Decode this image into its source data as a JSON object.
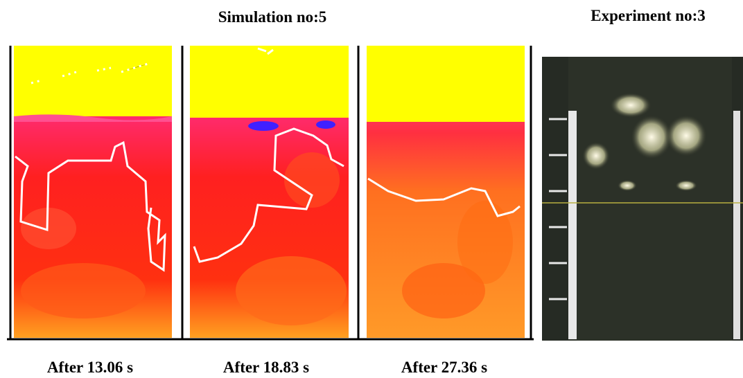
{
  "titles": {
    "simulation": "Simulation no:5",
    "experiment": "Experiment no:3"
  },
  "captions": [
    "After 13.06 s",
    "After 18.83 s",
    "After 27.36 s"
  ]
}
